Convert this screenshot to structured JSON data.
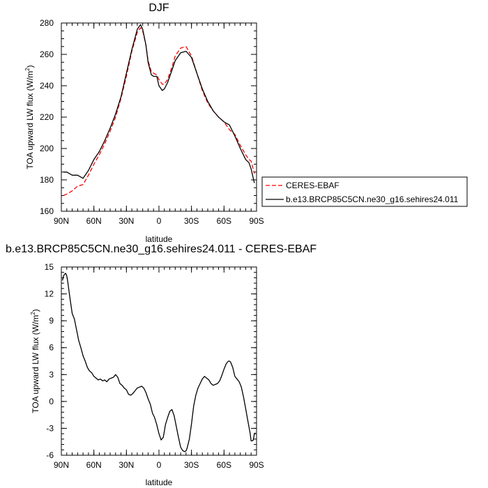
{
  "chart_data": [
    {
      "type": "line",
      "title": "DJF",
      "xlabel": "latitude",
      "ylabel_main": "TOA upward LW flux (W/m",
      "ylabel_sup": "2",
      "ylabel_end": ")",
      "xlim": [
        90,
        -90
      ],
      "ylim": [
        160,
        280
      ],
      "xticks": [
        90,
        60,
        30,
        0,
        -30,
        -60,
        -90
      ],
      "xtick_labels": [
        "90N",
        "60N",
        "30N",
        "0",
        "30S",
        "60S",
        "90S"
      ],
      "yticks": [
        160,
        180,
        200,
        220,
        240,
        260,
        280
      ],
      "ytick_labels": [
        "160",
        "180",
        "200",
        "220",
        "240",
        "260",
        "280"
      ],
      "legend": "right-bottom",
      "series": [
        {
          "name": "CERES-EBAF",
          "color": "#ff0000",
          "dashed": true,
          "x": [
            88,
            85,
            80,
            75,
            70,
            65,
            60,
            55,
            50,
            45,
            40,
            35,
            30,
            25,
            20,
            17,
            15,
            12,
            10,
            7,
            5,
            2,
            0,
            -3,
            -5,
            -8,
            -12,
            -15,
            -20,
            -25,
            -30,
            -35,
            -40,
            -45,
            -50,
            -55,
            -60,
            -65,
            -70,
            -75,
            -80,
            -83,
            -85,
            -88
          ],
          "y": [
            170,
            171,
            173,
            176,
            177,
            183,
            190,
            196,
            203,
            211,
            220,
            232,
            246,
            262,
            274,
            277,
            275,
            266,
            256,
            249,
            248,
            247,
            244,
            241,
            241,
            244,
            252,
            259,
            264,
            265,
            259,
            248,
            237,
            229,
            224,
            220,
            217,
            212,
            209,
            202,
            196,
            193,
            192,
            184
          ]
        },
        {
          "name": "b.e13.BRCP85C5CN.ne30_g16.sehires24.011",
          "color": "#000000",
          "dashed": false,
          "x": [
            88,
            85,
            80,
            75,
            70,
            65,
            60,
            55,
            50,
            45,
            40,
            35,
            30,
            25,
            20,
            17,
            15,
            12,
            10,
            7,
            5,
            2,
            0,
            -3,
            -5,
            -8,
            -12,
            -15,
            -20,
            -25,
            -30,
            -35,
            -40,
            -45,
            -50,
            -55,
            -60,
            -65,
            -70,
            -75,
            -80,
            -83,
            -85,
            -88
          ],
          "y": [
            185,
            185,
            183,
            183,
            181,
            186,
            193,
            198,
            205,
            213,
            222,
            233,
            248,
            263,
            276,
            279,
            276,
            266,
            255,
            247,
            246,
            246,
            240,
            237,
            238,
            242,
            250,
            256,
            261,
            262,
            258,
            248,
            238,
            230,
            224,
            220,
            217,
            215,
            208,
            200,
            193,
            191,
            187,
            178
          ]
        }
      ]
    },
    {
      "type": "line",
      "title": "b.e13.BRCP85C5CN.ne30_g16.sehires24.011 - CERES-EBAF",
      "xlabel": "latitude",
      "ylabel_main": "TOA upward LW flux (W/m",
      "ylabel_sup": "2",
      "ylabel_end": ")",
      "xlim": [
        90,
        -90
      ],
      "ylim": [
        -6,
        15
      ],
      "xticks": [
        90,
        60,
        30,
        0,
        -30,
        -60,
        -90
      ],
      "xtick_labels": [
        "90N",
        "60N",
        "30N",
        "0",
        "30S",
        "60S",
        "90S"
      ],
      "yticks": [
        -6,
        -3,
        0,
        3,
        6,
        9,
        12,
        15
      ],
      "ytick_labels": [
        "-6",
        "-3",
        "0",
        "3",
        "6",
        "9",
        "12",
        "15"
      ],
      "series": [
        {
          "color": "#000000",
          "dashed": false,
          "x": [
            89,
            88,
            87,
            86,
            85,
            84,
            82,
            80,
            78,
            76,
            74,
            72,
            70,
            68,
            66,
            64,
            62,
            60,
            58,
            56,
            54,
            52,
            50,
            48,
            46,
            44,
            42,
            40,
            38,
            36,
            34,
            32,
            30,
            28,
            26,
            24,
            22,
            20,
            18,
            16,
            14,
            12,
            10,
            8,
            6,
            4,
            2,
            0,
            -2,
            -4,
            -5,
            -6,
            -8,
            -10,
            -12,
            -14,
            -16,
            -18,
            -20,
            -22,
            -24,
            -25,
            -26,
            -28,
            -30,
            -32,
            -34,
            -36,
            -38,
            -40,
            -42,
            -44,
            -46,
            -48,
            -50,
            -52,
            -54,
            -56,
            -58,
            -60,
            -62,
            -64,
            -65,
            -66,
            -68,
            -70,
            -72,
            -74,
            -76,
            -78,
            -80,
            -82,
            -84,
            -85,
            -86,
            -87,
            -88,
            -89
          ],
          "y": [
            13.5,
            14.0,
            14.2,
            14.3,
            14.0,
            13.3,
            11.5,
            9.8,
            9.2,
            8.0,
            6.8,
            6.0,
            5.1,
            4.5,
            3.8,
            3.4,
            3.2,
            2.8,
            2.6,
            2.4,
            2.5,
            2.3,
            2.4,
            2.2,
            2.5,
            2.6,
            2.7,
            3.0,
            2.7,
            2.0,
            1.8,
            1.5,
            1.3,
            0.8,
            0.7,
            0.9,
            1.2,
            1.5,
            1.6,
            1.7,
            1.5,
            1.0,
            0.3,
            -0.3,
            -1.3,
            -1.8,
            -2.6,
            -3.6,
            -4.3,
            -4.0,
            -3.3,
            -2.6,
            -1.8,
            -1.1,
            -0.9,
            -1.6,
            -2.8,
            -4.0,
            -5.1,
            -5.5,
            -5.6,
            -5.5,
            -5.2,
            -4.2,
            -2.5,
            -0.5,
            0.7,
            1.5,
            2.0,
            2.5,
            2.8,
            2.6,
            2.4,
            2.0,
            1.8,
            1.9,
            2.0,
            2.3,
            2.9,
            3.6,
            4.2,
            4.5,
            4.5,
            4.4,
            3.8,
            2.8,
            2.5,
            2.2,
            1.6,
            0.5,
            -0.8,
            -2.2,
            -3.5,
            -4.4,
            -4.4,
            -4.3,
            -3.6,
            -3.5
          ]
        }
      ]
    }
  ]
}
